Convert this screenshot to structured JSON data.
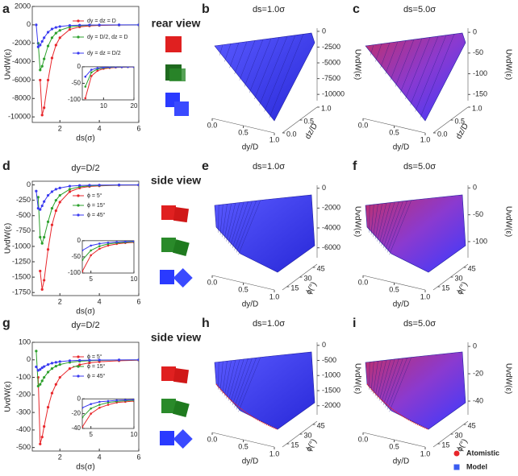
{
  "chart_data": [
    {
      "type": "line",
      "label": "a",
      "view": "rear view",
      "xlabel": "ds(σ)",
      "ylabel": "UvdW(ε)",
      "x": [
        0.8,
        0.9,
        1.0,
        1.1,
        1.2,
        1.4,
        1.6,
        1.8,
        2.0,
        2.5,
        3.0,
        3.5,
        4.0,
        5.0,
        6.0
      ],
      "xlim": [
        0.6,
        6
      ],
      "xticks": [
        2,
        4,
        6
      ],
      "ylim": [
        -10600,
        2000
      ],
      "yticks": [
        -10000,
        -8000,
        -6000,
        -4000,
        -2000,
        0,
        2000
      ],
      "series": [
        {
          "name": "dy = dz = D",
          "color": "#e8262b",
          "values": [
            null,
            null,
            -6000,
            -9800,
            -9000,
            -6000,
            -3600,
            -2200,
            -1400,
            -500,
            -220,
            -110,
            -60,
            -20,
            -8
          ]
        },
        {
          "name": "dy = D/2, dz = D",
          "color": "#2ca02c",
          "values": [
            null,
            -2000,
            -4900,
            -4500,
            -3700,
            -2300,
            -1400,
            -900,
            -600,
            -230,
            -100,
            -50,
            -28,
            -10,
            -4
          ]
        },
        {
          "name": "dy = dz = D/2",
          "color": "#3a3af0",
          "values": [
            0,
            -2400,
            -2200,
            -1800,
            -1400,
            -800,
            -450,
            -280,
            -180,
            -70,
            -30,
            -15,
            -9,
            -3,
            -1
          ]
        }
      ]
    },
    {
      "type": "line",
      "inset": true,
      "x": [
        4,
        6,
        8,
        10,
        12,
        14,
        16,
        18,
        20
      ],
      "xlim": [
        3,
        20
      ],
      "xticks": [
        10,
        20
      ],
      "ylim": [
        -100,
        0
      ],
      "yticks": [
        -100,
        -50,
        0
      ],
      "series": [
        {
          "color": "#e8262b",
          "values": [
            -95,
            -28,
            -12,
            -6,
            -3.5,
            -2,
            -1.5,
            -1,
            -0.7
          ]
        },
        {
          "color": "#2ca02c",
          "values": [
            -60,
            -17,
            -7,
            -3.5,
            -2,
            -1.2,
            -0.9,
            -0.6,
            -0.4
          ]
        },
        {
          "color": "#3a3af0",
          "values": [
            -30,
            -9,
            -4,
            -2,
            -1,
            -0.7,
            -0.5,
            -0.3,
            -0.2
          ]
        }
      ]
    },
    {
      "type": "surface",
      "label": "b",
      "title": "ds=1.0σ",
      "xlabel": "dy/D",
      "ylabel": "dz/D",
      "zlabel": "UvdW(ε)",
      "xlim": [
        0,
        1
      ],
      "xticks": [
        {
          "value": 0,
          "label": "0.0"
        },
        {
          "value": 0.5,
          "label": "0.5"
        },
        {
          "value": 1,
          "label": "1.0"
        }
      ],
      "ylim": [
        0,
        1
      ],
      "yticks": [
        {
          "value": 0,
          "label": "0.0"
        },
        {
          "value": 0.5,
          "label": "0.5"
        },
        {
          "value": 1,
          "label": "1.0"
        }
      ],
      "zlim": [
        -11000,
        500
      ],
      "zticks": [
        0,
        -2500,
        -5000,
        -7500,
        -10000
      ]
    },
    {
      "type": "surface",
      "label": "c",
      "title": "ds=5.0σ",
      "xlabel": "dy/D",
      "ylabel": "dz/D",
      "zlabel": "UvdW(ε)",
      "xlim": [
        0,
        1
      ],
      "xticks": [
        {
          "value": 0,
          "label": "0.0"
        },
        {
          "value": 0.5,
          "label": "0.5"
        },
        {
          "value": 1,
          "label": "1.0"
        }
      ],
      "ylim": [
        0,
        1
      ],
      "yticks": [
        {
          "value": 0,
          "label": "0.0"
        },
        {
          "value": 0.5,
          "label": "0.5"
        },
        {
          "value": 1,
          "label": "1.0"
        }
      ],
      "zlim": [
        -165,
        10
      ],
      "zticks": [
        0,
        -50,
        -100,
        -150
      ]
    },
    {
      "type": "line",
      "label": "d",
      "title": "dy=D/2",
      "view": "side view",
      "xlabel": "ds(σ)",
      "ylabel": "UvdW(ε)",
      "x": [
        0.8,
        0.9,
        1.0,
        1.1,
        1.2,
        1.4,
        1.6,
        1.8,
        2.0,
        2.5,
        3.0,
        3.5,
        4.0,
        5.0,
        6.0
      ],
      "xlim": [
        0.6,
        6
      ],
      "xticks": [
        2,
        4,
        6
      ],
      "ylim": [
        -1800,
        60
      ],
      "yticks": [
        -1750,
        -1500,
        -1250,
        -1000,
        -750,
        -500,
        -250,
        0
      ],
      "series": [
        {
          "name": "ϕ = 5°",
          "color": "#e8262b",
          "values": [
            null,
            null,
            -1400,
            -1700,
            -1550,
            -1050,
            -650,
            -420,
            -280,
            -110,
            -50,
            -25,
            -15,
            -6,
            -2
          ]
        },
        {
          "name": "ϕ = 15°",
          "color": "#2ca02c",
          "values": [
            null,
            -200,
            -850,
            -950,
            -850,
            -600,
            -380,
            -250,
            -170,
            -70,
            -30,
            -16,
            -9,
            -3,
            -1
          ]
        },
        {
          "name": "ϕ = 45°",
          "color": "#3a3af0",
          "values": [
            -100,
            -380,
            -400,
            -340,
            -270,
            -170,
            -110,
            -70,
            -50,
            -20,
            -9,
            -5,
            -3,
            -1,
            0
          ]
        }
      ]
    },
    {
      "type": "line",
      "inset": true,
      "x": [
        4,
        5,
        6,
        7,
        8,
        9,
        10
      ],
      "xlim": [
        4,
        10
      ],
      "xticks": [
        5,
        10
      ],
      "ylim": [
        -100,
        0
      ],
      "yticks": [
        -100,
        -50,
        0
      ],
      "series": [
        {
          "color": "#e8262b",
          "values": [
            -95,
            -45,
            -25,
            -15,
            -10,
            -7,
            -5
          ]
        },
        {
          "color": "#2ca02c",
          "values": [
            -60,
            -30,
            -17,
            -10,
            -7,
            -5,
            -3.5
          ]
        },
        {
          "color": "#3a3af0",
          "values": [
            -30,
            -15,
            -9,
            -6,
            -4,
            -3,
            -2
          ]
        }
      ]
    },
    {
      "type": "surface",
      "label": "e",
      "title": "ds=1.0σ",
      "xlabel": "dy/D",
      "ylabel": "ϕ(°)",
      "zlabel": "UvdW(ε)",
      "xlim": [
        0,
        1
      ],
      "xticks": [
        {
          "value": 0,
          "label": "0.0"
        },
        {
          "value": 0.5,
          "label": "0.5"
        },
        {
          "value": 1,
          "label": "1.0"
        }
      ],
      "ylim": [
        10,
        50
      ],
      "yticks": [
        15,
        30,
        45
      ],
      "zlim": [
        -7000,
        300
      ],
      "zticks": [
        0,
        -2000,
        -4000,
        -6000
      ]
    },
    {
      "type": "surface",
      "label": "f",
      "title": "ds=5.0σ",
      "xlabel": "dy/D",
      "ylabel": "ϕ(°)",
      "zlabel": "UvdW(ε)",
      "xlim": [
        0,
        1
      ],
      "xticks": [
        {
          "value": 0,
          "label": "0.0"
        },
        {
          "value": 0.5,
          "label": "0.5"
        },
        {
          "value": 1,
          "label": "1.0"
        }
      ],
      "ylim": [
        10,
        50
      ],
      "yticks": [
        15,
        30,
        45
      ],
      "zlim": [
        -130,
        5
      ],
      "zticks": [
        0,
        -50,
        -100
      ]
    },
    {
      "type": "line",
      "label": "g",
      "title": "dy=D/2",
      "view": "side view",
      "xlabel": "ds(σ)",
      "ylabel": "UvdW(ε)",
      "x": [
        0.8,
        0.9,
        1.0,
        1.1,
        1.2,
        1.4,
        1.6,
        1.8,
        2.0,
        2.5,
        3.0,
        3.5,
        4.0,
        5.0,
        6.0
      ],
      "xlim": [
        0.6,
        6
      ],
      "xticks": [
        2,
        4,
        6
      ],
      "ylim": [
        -520,
        100
      ],
      "yticks": [
        -500,
        -400,
        -300,
        -200,
        -100,
        0,
        100
      ],
      "series": [
        {
          "name": "ϕ = 5°",
          "color": "#e8262b",
          "values": [
            null,
            -100,
            -480,
            -440,
            -380,
            -270,
            -190,
            -140,
            -100,
            -50,
            -28,
            -17,
            -11,
            -5,
            -2
          ]
        },
        {
          "name": "ϕ = 15°",
          "color": "#2ca02c",
          "values": [
            50,
            -150,
            -140,
            -120,
            -100,
            -70,
            -50,
            -36,
            -27,
            -14,
            -8,
            -5,
            -3,
            -1,
            -0.5
          ]
        },
        {
          "name": "ϕ = 45°",
          "color": "#3a3af0",
          "values": [
            -40,
            -60,
            -55,
            -45,
            -38,
            -27,
            -19,
            -14,
            -10,
            -5,
            -3,
            -2,
            -1,
            -0.5,
            0
          ]
        }
      ]
    },
    {
      "type": "line",
      "inset": true,
      "x": [
        4,
        5,
        6,
        7,
        8,
        9,
        10
      ],
      "xlim": [
        4,
        10
      ],
      "xticks": [
        5,
        10
      ],
      "ylim": [
        -40,
        0
      ],
      "yticks": [
        -40,
        -20,
        0
      ],
      "series": [
        {
          "color": "#e8262b",
          "values": [
            -38,
            -20,
            -12,
            -8,
            -5,
            -4,
            -3
          ]
        },
        {
          "color": "#2ca02c",
          "values": [
            -25,
            -13,
            -8,
            -5,
            -3.5,
            -2.5,
            -2
          ]
        },
        {
          "color": "#3a3af0",
          "values": [
            -12,
            -7,
            -4,
            -3,
            -2,
            -1.5,
            -1
          ]
        }
      ]
    },
    {
      "type": "surface",
      "label": "h",
      "title": "ds=1.0σ",
      "xlabel": "dy/D",
      "ylabel": "ϕ(°)",
      "zlabel": "UvdW(ε)",
      "xlim": [
        0,
        1
      ],
      "xticks": [
        {
          "value": 0,
          "label": "0.0"
        },
        {
          "value": 0.5,
          "label": "0.5"
        },
        {
          "value": 1,
          "label": "1.0"
        }
      ],
      "ylim": [
        10,
        50
      ],
      "yticks": [
        15,
        30,
        45
      ],
      "zlim": [
        -2300,
        100
      ],
      "zticks": [
        0,
        -500,
        -1000,
        -1500,
        -2000
      ]
    },
    {
      "type": "surface",
      "label": "i",
      "title": "ds=5.0σ",
      "xlabel": "dy/D",
      "ylabel": "ϕ(°)",
      "zlabel": "UvdW(ε)",
      "xlim": [
        0,
        1
      ],
      "xticks": [
        {
          "value": 0,
          "label": "0.0"
        },
        {
          "value": 0.5,
          "label": "0.5"
        },
        {
          "value": 1,
          "label": "1.0"
        }
      ],
      "ylim": [
        10,
        50
      ],
      "yticks": [
        15,
        30,
        45
      ],
      "zlim": [
        -50,
        3
      ],
      "zticks": [
        0,
        -20,
        -40
      ]
    }
  ],
  "surface_legend": [
    {
      "name": "Atomistic",
      "color": "#e8262b"
    },
    {
      "name": "Model",
      "color": "#3a5cf0"
    }
  ]
}
